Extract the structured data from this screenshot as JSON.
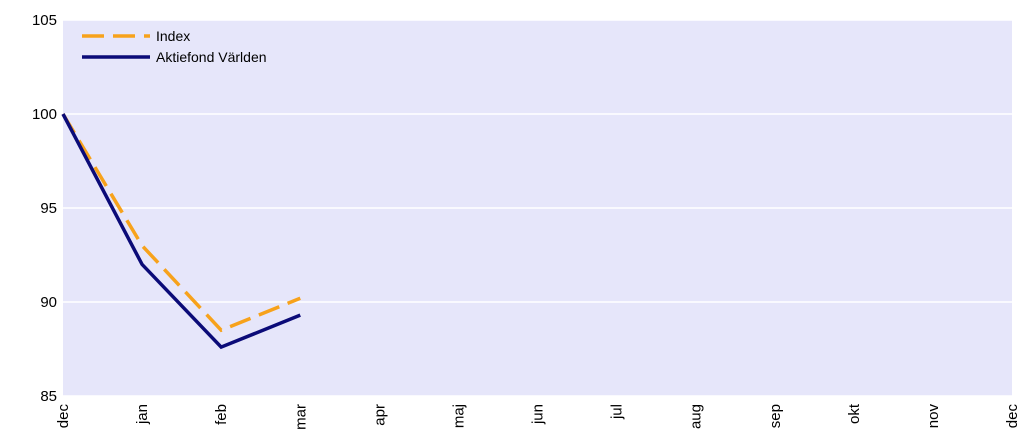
{
  "chart_data": {
    "type": "line",
    "categories": [
      "dec",
      "jan",
      "feb",
      "mar",
      "apr",
      "maj",
      "jun",
      "jul",
      "aug",
      "sep",
      "okt",
      "nov",
      "dec"
    ],
    "series": [
      {
        "name": "Index",
        "color": "#f7a21b",
        "dashed": true,
        "values": [
          100,
          93.0,
          88.5,
          90.2,
          null,
          null,
          null,
          null,
          null,
          null,
          null,
          null,
          null
        ]
      },
      {
        "name": "Aktiefond Världen",
        "color": "#0b0b78",
        "dashed": false,
        "values": [
          100,
          92.0,
          87.6,
          89.3,
          null,
          null,
          null,
          null,
          null,
          null,
          null,
          null,
          null
        ]
      }
    ],
    "ylim": [
      85,
      105
    ],
    "yticks": [
      85,
      90,
      95,
      100,
      105
    ],
    "grid": true,
    "legend": "top-left",
    "background": "#e6e6fa"
  }
}
